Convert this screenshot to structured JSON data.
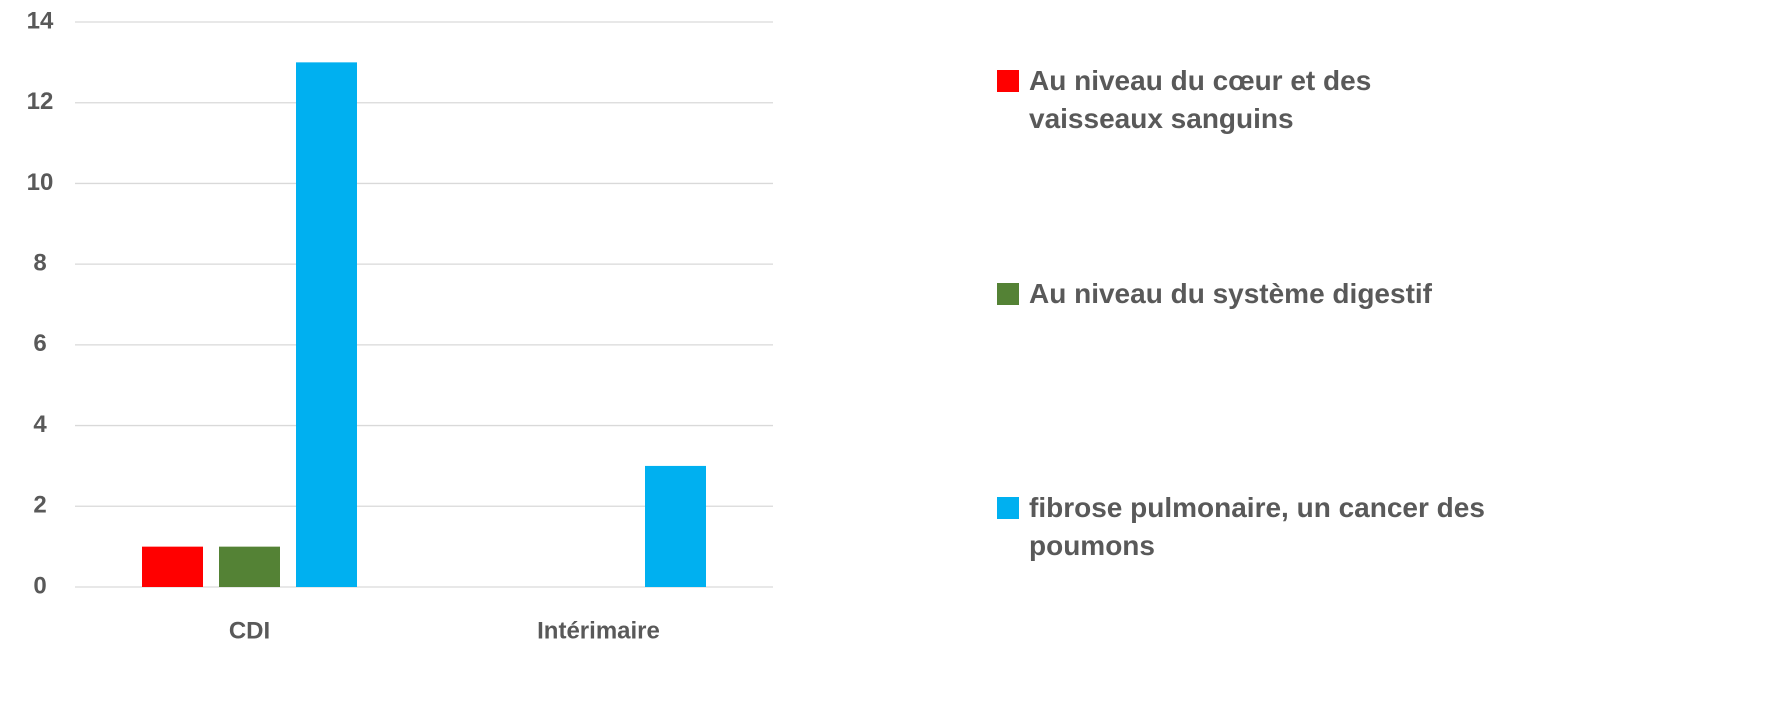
{
  "chart_data": {
    "type": "bar",
    "categories": [
      "CDI",
      "Intérimaire"
    ],
    "series": [
      {
        "name": "Au niveau du cœur et des vaisseaux sanguins",
        "color": "#ff0000",
        "values": [
          1,
          0
        ]
      },
      {
        "name": "Au niveau du système digestif",
        "color": "#548235",
        "values": [
          1,
          0
        ]
      },
      {
        "name": "fibrose pulmonaire, un cancer des poumons",
        "color": "#00b0f0",
        "values": [
          13,
          3
        ]
      }
    ],
    "ylim": [
      0,
      14
    ],
    "yticks": [
      0,
      2,
      4,
      6,
      8,
      10,
      12,
      14
    ],
    "grid": true,
    "legend": "right"
  }
}
